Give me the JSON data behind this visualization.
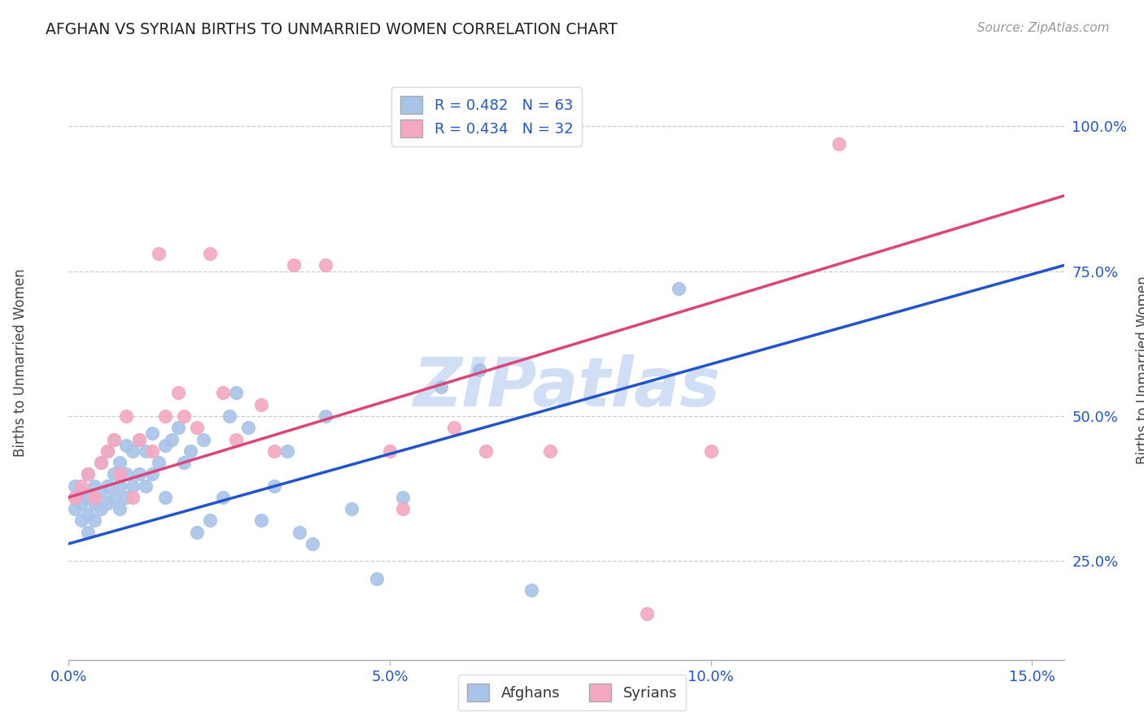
{
  "title": "AFGHAN VS SYRIAN BIRTHS TO UNMARRIED WOMEN CORRELATION CHART",
  "source": "Source: ZipAtlas.com",
  "ylabel": "Births to Unmarried Women",
  "xlabel_ticks": [
    "0.0%",
    "5.0%",
    "10.0%",
    "15.0%"
  ],
  "xlabel_vals": [
    0.0,
    0.05,
    0.1,
    0.15
  ],
  "ylabel_ticks": [
    "25.0%",
    "50.0%",
    "75.0%",
    "100.0%"
  ],
  "ylabel_vals": [
    0.25,
    0.5,
    0.75,
    1.0
  ],
  "xmin": 0.0,
  "xmax": 0.155,
  "ymin": 0.08,
  "ymax": 1.08,
  "afghan_R": 0.482,
  "afghan_N": 63,
  "syrian_R": 0.434,
  "syrian_N": 32,
  "afghan_color": "#a8c4e8",
  "syrian_color": "#f4a8c0",
  "afghan_line_color": "#2255cc",
  "syrian_line_color": "#dd4477",
  "watermark": "ZIPatlas",
  "watermark_color": "#d0dff5",
  "legend_color": "#2255cc",
  "title_color": "#222222",
  "axis_label_color": "#2255cc",
  "afghan_scatter_x": [
    0.001,
    0.001,
    0.001,
    0.002,
    0.002,
    0.002,
    0.003,
    0.003,
    0.003,
    0.003,
    0.004,
    0.004,
    0.004,
    0.005,
    0.005,
    0.005,
    0.006,
    0.006,
    0.006,
    0.007,
    0.007,
    0.007,
    0.008,
    0.008,
    0.008,
    0.009,
    0.009,
    0.009,
    0.01,
    0.01,
    0.011,
    0.011,
    0.012,
    0.012,
    0.013,
    0.013,
    0.014,
    0.015,
    0.015,
    0.016,
    0.017,
    0.018,
    0.019,
    0.02,
    0.021,
    0.022,
    0.024,
    0.025,
    0.026,
    0.028,
    0.03,
    0.032,
    0.034,
    0.036,
    0.038,
    0.04,
    0.044,
    0.048,
    0.052,
    0.058,
    0.064,
    0.072,
    0.095
  ],
  "afghan_scatter_y": [
    0.34,
    0.36,
    0.38,
    0.32,
    0.35,
    0.37,
    0.3,
    0.33,
    0.36,
    0.4,
    0.32,
    0.35,
    0.38,
    0.34,
    0.37,
    0.42,
    0.35,
    0.38,
    0.44,
    0.36,
    0.4,
    0.46,
    0.34,
    0.38,
    0.42,
    0.36,
    0.4,
    0.45,
    0.38,
    0.44,
    0.4,
    0.46,
    0.38,
    0.44,
    0.4,
    0.47,
    0.42,
    0.36,
    0.45,
    0.46,
    0.48,
    0.42,
    0.44,
    0.3,
    0.46,
    0.32,
    0.36,
    0.5,
    0.54,
    0.48,
    0.32,
    0.38,
    0.44,
    0.3,
    0.28,
    0.5,
    0.34,
    0.22,
    0.36,
    0.55,
    0.58,
    0.2,
    0.72
  ],
  "syrian_scatter_x": [
    0.001,
    0.002,
    0.003,
    0.004,
    0.005,
    0.006,
    0.007,
    0.008,
    0.009,
    0.01,
    0.011,
    0.013,
    0.014,
    0.015,
    0.017,
    0.018,
    0.02,
    0.022,
    0.024,
    0.026,
    0.03,
    0.032,
    0.035,
    0.04,
    0.05,
    0.052,
    0.06,
    0.065,
    0.075,
    0.09,
    0.1,
    0.12
  ],
  "syrian_scatter_y": [
    0.36,
    0.38,
    0.4,
    0.36,
    0.42,
    0.44,
    0.46,
    0.4,
    0.5,
    0.36,
    0.46,
    0.44,
    0.78,
    0.5,
    0.54,
    0.5,
    0.48,
    0.78,
    0.54,
    0.46,
    0.52,
    0.44,
    0.76,
    0.76,
    0.44,
    0.34,
    0.48,
    0.44,
    0.44,
    0.16,
    0.44,
    0.97
  ],
  "afghan_line_x0": 0.0,
  "afghan_line_x1": 0.155,
  "afghan_line_y0": 0.28,
  "afghan_line_y1": 0.76,
  "syrian_line_x0": 0.0,
  "syrian_line_x1": 0.155,
  "syrian_line_y0": 0.36,
  "syrian_line_y1": 0.88
}
